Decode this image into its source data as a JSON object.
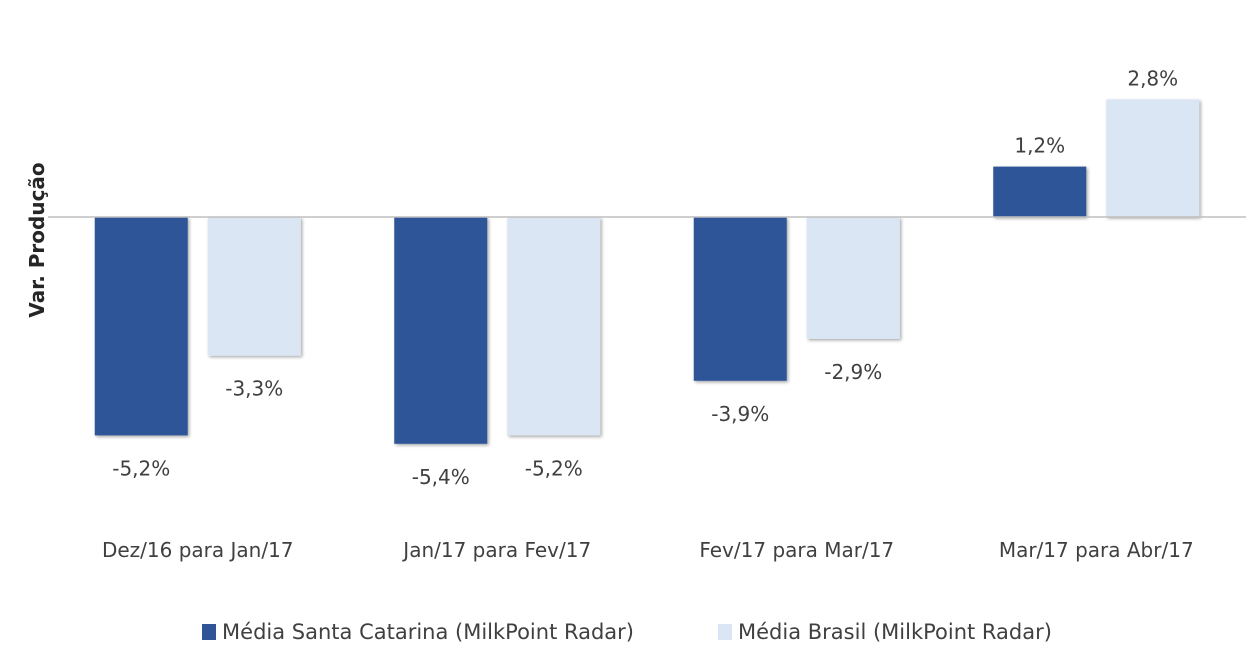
{
  "chart_data": {
    "type": "bar",
    "title": "",
    "xlabel": "",
    "ylabel": "Var. Produção",
    "ylim": [
      -6.0,
      3.6
    ],
    "grid": false,
    "legend_position": "bottom",
    "categories": [
      "Dez/16 para Jan/17",
      "Jan/17 para Fev/17",
      "Fev/17 para Mar/17",
      "Mar/17 para Abr/17"
    ],
    "series": [
      {
        "name": "Média Santa Catarina (MilkPoint Radar)",
        "color": "#2F5597",
        "values": [
          -5.2,
          -5.4,
          -3.9,
          1.2
        ],
        "labels": [
          "-5,2%",
          "-5,4%",
          "-3,9%",
          "1,2%"
        ]
      },
      {
        "name": "Média Brasil (MilkPoint Radar)",
        "color": "#DAE6F3",
        "values": [
          -3.3,
          -5.2,
          -2.9,
          2.8
        ],
        "labels": [
          "-3,3%",
          "-5,2%",
          "-2,9%",
          "2,8%"
        ]
      }
    ]
  }
}
